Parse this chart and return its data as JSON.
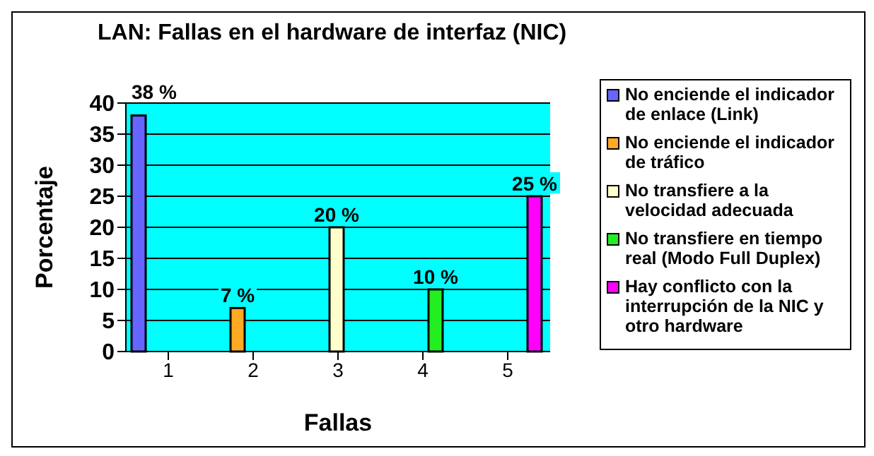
{
  "chart_data": {
    "type": "bar",
    "title": "LAN: Fallas en el hardware de interfaz (NIC)",
    "xlabel": "Fallas",
    "ylabel": "Porcentaje",
    "categories": [
      "1",
      "2",
      "3",
      "4",
      "5"
    ],
    "ylim": [
      0,
      40
    ],
    "yticks": [
      0,
      5,
      10,
      15,
      20,
      25,
      30,
      35,
      40
    ],
    "grid": "y",
    "legend": "right",
    "series": [
      {
        "name": "No enciende el indicador de enlace (Link)",
        "color": "#6666ff",
        "values": [
          38,
          null,
          null,
          null,
          null
        ],
        "value_labels": [
          "38 %",
          null,
          null,
          null,
          null
        ]
      },
      {
        "name": "No enciende el indicador de tráfico",
        "color": "#ffaa22",
        "values": [
          null,
          7,
          null,
          null,
          null
        ],
        "value_labels": [
          null,
          "7 %",
          null,
          null,
          null
        ]
      },
      {
        "name": "No transfiere a la velocidad adecuada",
        "color": "#ffffcc",
        "values": [
          null,
          null,
          20,
          null,
          null
        ],
        "value_labels": [
          null,
          null,
          "20 %",
          null,
          null
        ]
      },
      {
        "name": "No transfiere en tiempo real (Modo Full Duplex)",
        "color": "#22ee22",
        "values": [
          null,
          null,
          null,
          10,
          null
        ],
        "value_labels": [
          null,
          null,
          null,
          "10 %",
          null
        ]
      },
      {
        "name": "Hay conflicto con la interrupción de la NIC y otro hardware",
        "color": "#ff00ff",
        "values": [
          null,
          null,
          null,
          null,
          25
        ],
        "value_labels": [
          null,
          null,
          null,
          null,
          "25 %"
        ]
      }
    ]
  }
}
